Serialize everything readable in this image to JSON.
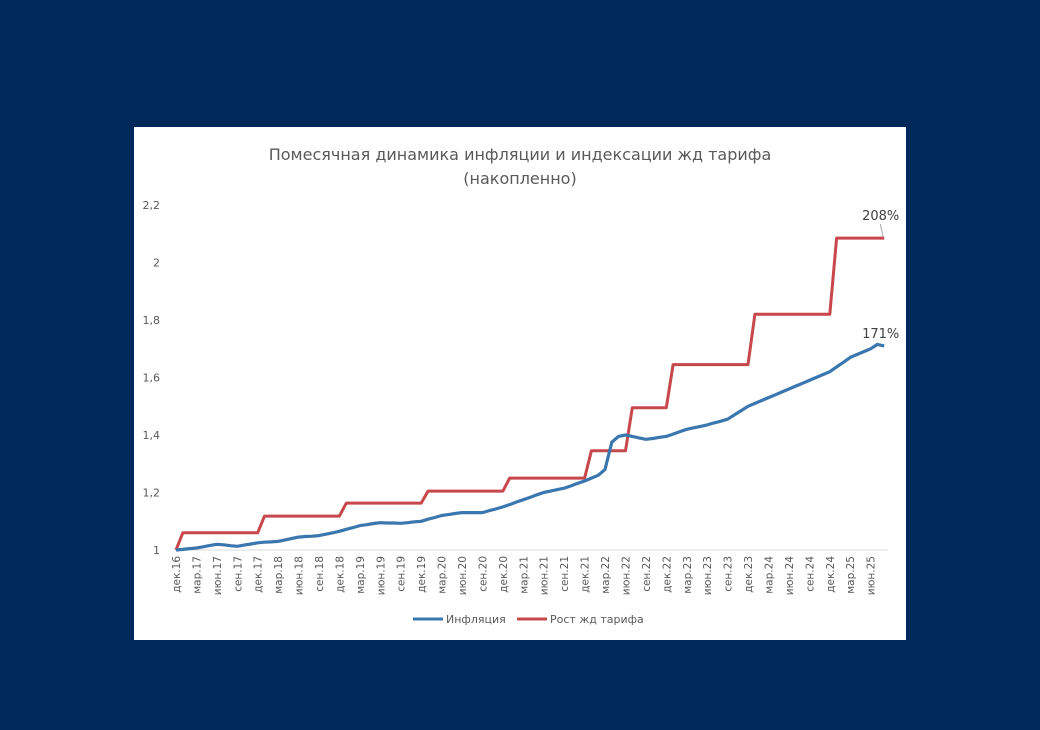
{
  "colors": {
    "background": "#00285a",
    "panel": "#ffffff",
    "inflation": "#3a77ae",
    "tariff": "#c8474b",
    "text": "#595959",
    "axis": "#d9d9d9"
  },
  "chart_data": {
    "type": "line",
    "title": "Помесячная динамика инфляции и индексации жд тарифа",
    "subtitle": "(накопленно)",
    "xlabel": "",
    "ylabel": "",
    "ylim": [
      1,
      2.2
    ],
    "yticks": [
      "1",
      "1,2",
      "1,4",
      "1,6",
      "1,8",
      "2",
      "2,2"
    ],
    "ytick_values": [
      1,
      1.2,
      1.4,
      1.6,
      1.8,
      2,
      2.2
    ],
    "grid": false,
    "legend_position": "bottom",
    "x_tick_labels": [
      "дек.16",
      "мар.17",
      "июн.17",
      "сен.17",
      "дек.17",
      "мар.18",
      "июн.18",
      "сен.18",
      "дек.18",
      "мар.19",
      "июн.19",
      "сен.19",
      "дек.19",
      "мар.20",
      "июн.20",
      "сен.20",
      "дек.20",
      "мар.21",
      "июн.21",
      "сен.21",
      "дек.21",
      "мар.22",
      "июн.22",
      "сен.22",
      "дек.22",
      "мар.23",
      "июн.23",
      "сен.23",
      "дек.23",
      "мар.24",
      "июн.24",
      "сен.24",
      "дек.24",
      "мар.25",
      "июн.25"
    ],
    "x_tick_every_months": 3,
    "x_months_count": 105,
    "series": [
      {
        "name": "Инфляция",
        "color": "#3a77ae",
        "values": [
          1.0,
          1.002,
          1.005,
          1.007,
          1.011,
          1.016,
          1.02,
          1.018,
          1.015,
          1.013,
          1.017,
          1.021,
          1.025,
          1.027,
          1.028,
          1.03,
          1.035,
          1.04,
          1.045,
          1.047,
          1.048,
          1.05,
          1.055,
          1.06,
          1.065,
          1.072,
          1.078,
          1.085,
          1.088,
          1.092,
          1.095,
          1.094,
          1.094,
          1.093,
          1.095,
          1.098,
          1.1,
          1.107,
          1.113,
          1.12,
          1.123,
          1.127,
          1.13,
          1.13,
          1.13,
          1.13,
          1.137,
          1.143,
          1.15,
          1.158,
          1.167,
          1.175,
          1.183,
          1.192,
          1.2,
          1.205,
          1.21,
          1.215,
          1.223,
          1.232,
          1.24,
          1.25,
          1.26,
          1.28,
          1.375,
          1.395,
          1.4,
          1.395,
          1.39,
          1.385,
          1.388,
          1.392,
          1.395,
          1.403,
          1.412,
          1.42,
          1.425,
          1.43,
          1.435,
          1.442,
          1.448,
          1.455,
          1.47,
          1.485,
          1.5,
          1.51,
          1.52,
          1.53,
          1.54,
          1.55,
          1.56,
          1.57,
          1.58,
          1.59,
          1.6,
          1.61,
          1.62,
          1.637,
          1.653,
          1.67,
          1.68,
          1.69,
          1.7,
          1.715,
          1.71
        ]
      },
      {
        "name": "Рост жд тарифа",
        "color": "#c8474b",
        "values": [
          1.0,
          1.06,
          1.06,
          1.06,
          1.06,
          1.06,
          1.06,
          1.06,
          1.06,
          1.06,
          1.06,
          1.06,
          1.06,
          1.118,
          1.118,
          1.118,
          1.118,
          1.118,
          1.118,
          1.118,
          1.118,
          1.118,
          1.118,
          1.118,
          1.118,
          1.163,
          1.163,
          1.163,
          1.163,
          1.163,
          1.163,
          1.163,
          1.163,
          1.163,
          1.163,
          1.163,
          1.163,
          1.205,
          1.205,
          1.205,
          1.205,
          1.205,
          1.205,
          1.205,
          1.205,
          1.205,
          1.205,
          1.205,
          1.205,
          1.25,
          1.25,
          1.25,
          1.25,
          1.25,
          1.25,
          1.25,
          1.25,
          1.25,
          1.25,
          1.25,
          1.25,
          1.345,
          1.345,
          1.345,
          1.345,
          1.345,
          1.345,
          1.495,
          1.495,
          1.495,
          1.495,
          1.495,
          1.495,
          1.645,
          1.645,
          1.645,
          1.645,
          1.645,
          1.645,
          1.645,
          1.645,
          1.645,
          1.645,
          1.645,
          1.645,
          1.82,
          1.82,
          1.82,
          1.82,
          1.82,
          1.82,
          1.82,
          1.82,
          1.82,
          1.82,
          1.82,
          1.82,
          2.085,
          2.085,
          2.085,
          2.085,
          2.085,
          2.085,
          2.085,
          2.085
        ]
      }
    ],
    "annotations": [
      {
        "series": "Рост жд тарифа",
        "label": "208%"
      },
      {
        "series": "Инфляция",
        "label": "171%"
      }
    ]
  }
}
